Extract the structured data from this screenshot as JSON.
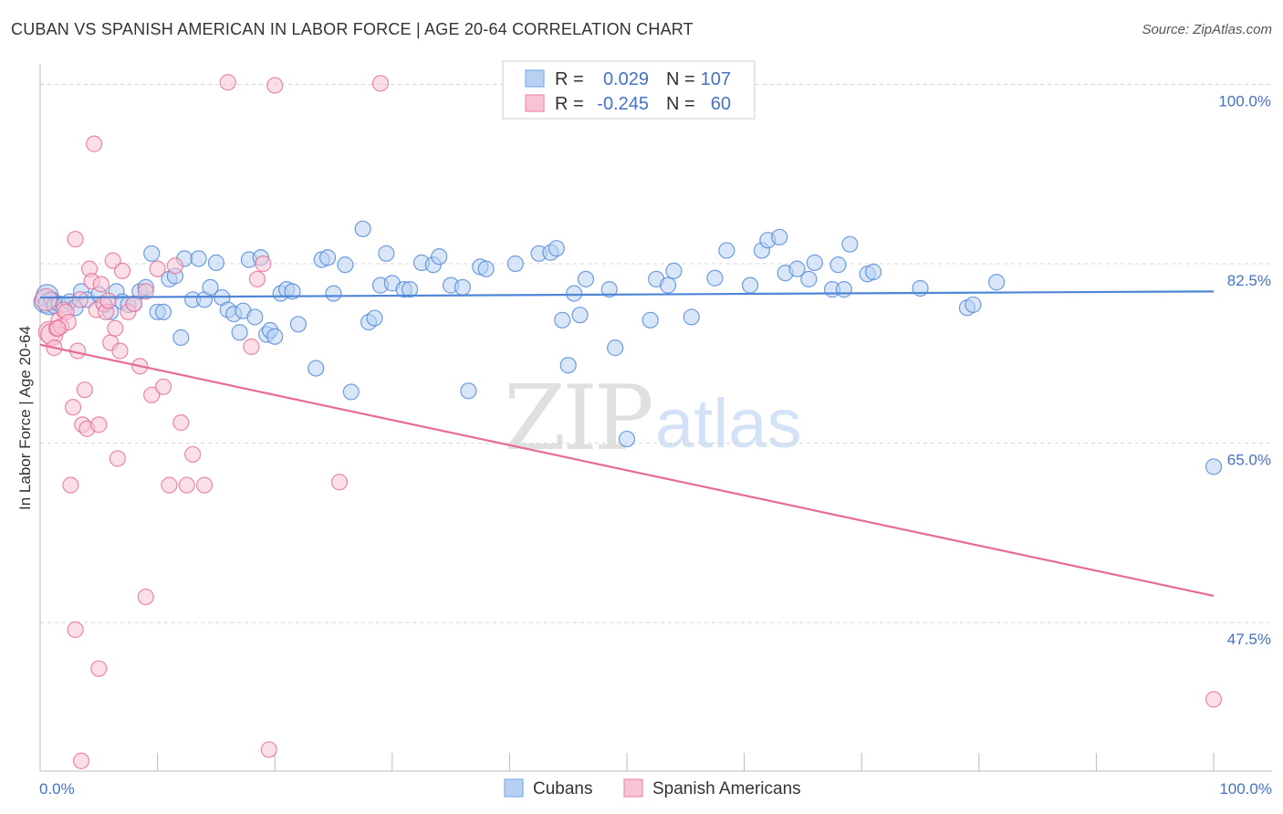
{
  "title": "CUBAN VS SPANISH AMERICAN IN LABOR FORCE | AGE 20-64 CORRELATION CHART",
  "source": "Source: ZipAtlas.com",
  "watermark": {
    "zip": "ZIP",
    "atlas": "atlas"
  },
  "legend": {
    "r_label": "R =",
    "n_label": "N =",
    "rows": [
      {
        "series": "Cubans",
        "r": "0.029",
        "n": "107",
        "color": "#7faee8",
        "fill": "#b8d1f3"
      },
      {
        "series": "Spanish Americans",
        "r": "-0.245",
        "n": "60",
        "color": "#f08fae",
        "fill": "#f8c4d4"
      }
    ]
  },
  "chart_data": {
    "type": "scatter",
    "title": "CUBAN VS SPANISH AMERICAN IN LABOR FORCE | AGE 20-64 CORRELATION CHART",
    "xlabel": "",
    "ylabel": "In Labor Force | Age 20-64",
    "xlim": [
      0,
      100
    ],
    "ylim": [
      33,
      102
    ],
    "x_tick_labels": [
      "0.0%",
      "100.0%"
    ],
    "y_ticks": [
      {
        "value": 100,
        "label": "100.0%"
      },
      {
        "value": 82.5,
        "label": "82.5%"
      },
      {
        "value": 65,
        "label": "65.0%"
      },
      {
        "value": 47.5,
        "label": "47.5%"
      }
    ],
    "grid": "horizontal-dashed",
    "series": [
      {
        "name": "Cubans",
        "color": "#4f86d6",
        "fill": "#b8d1f3",
        "trend": {
          "x": [
            0,
            100
          ],
          "y": [
            79.2,
            79.8
          ]
        },
        "points": [
          [
            0.4,
            78.8
          ],
          [
            0.6,
            79.4
          ],
          [
            0.8,
            78.6
          ],
          [
            1.0,
            79.0
          ],
          [
            1.2,
            78.4
          ],
          [
            1.6,
            78.6
          ],
          [
            2.0,
            78.5
          ],
          [
            2.5,
            78.8
          ],
          [
            3.0,
            78.2
          ],
          [
            3.5,
            79.8
          ],
          [
            4.0,
            79.0
          ],
          [
            5.0,
            79.5
          ],
          [
            5.5,
            78.5
          ],
          [
            6.0,
            77.8
          ],
          [
            6.5,
            79.8
          ],
          [
            7.0,
            78.8
          ],
          [
            7.5,
            78.5
          ],
          [
            8.0,
            78.6
          ],
          [
            8.5,
            79.8
          ],
          [
            9.0,
            80.2
          ],
          [
            9.5,
            83.5
          ],
          [
            10.0,
            77.8
          ],
          [
            10.5,
            77.8
          ],
          [
            11.0,
            81.0
          ],
          [
            11.5,
            81.3
          ],
          [
            12.0,
            75.3
          ],
          [
            12.3,
            83.0
          ],
          [
            13.0,
            79.0
          ],
          [
            13.5,
            83.0
          ],
          [
            14.0,
            79.0
          ],
          [
            14.5,
            80.2
          ],
          [
            15.0,
            82.6
          ],
          [
            15.5,
            79.2
          ],
          [
            16.0,
            78.0
          ],
          [
            16.5,
            77.6
          ],
          [
            17.0,
            75.8
          ],
          [
            17.3,
            77.9
          ],
          [
            17.8,
            82.9
          ],
          [
            18.3,
            77.3
          ],
          [
            18.8,
            83.1
          ],
          [
            19.3,
            75.6
          ],
          [
            19.6,
            76.0
          ],
          [
            20.0,
            75.4
          ],
          [
            20.5,
            79.6
          ],
          [
            21.0,
            80.0
          ],
          [
            21.5,
            79.8
          ],
          [
            22.0,
            76.6
          ],
          [
            23.5,
            72.3
          ],
          [
            24.0,
            82.9
          ],
          [
            24.5,
            83.1
          ],
          [
            25.0,
            79.6
          ],
          [
            26.0,
            82.4
          ],
          [
            26.5,
            70.0
          ],
          [
            27.5,
            85.9
          ],
          [
            28.0,
            76.8
          ],
          [
            28.5,
            77.2
          ],
          [
            29.0,
            80.4
          ],
          [
            29.5,
            83.5
          ],
          [
            30.0,
            80.6
          ],
          [
            31.0,
            80.0
          ],
          [
            31.5,
            80.0
          ],
          [
            32.5,
            82.6
          ],
          [
            33.5,
            82.4
          ],
          [
            34.0,
            83.2
          ],
          [
            35.0,
            80.4
          ],
          [
            36.0,
            80.2
          ],
          [
            36.5,
            70.1
          ],
          [
            37.5,
            82.2
          ],
          [
            38.0,
            82.0
          ],
          [
            40.5,
            82.5
          ],
          [
            42.5,
            83.5
          ],
          [
            43.5,
            83.6
          ],
          [
            44.0,
            84.0
          ],
          [
            44.5,
            77.0
          ],
          [
            45.0,
            72.6
          ],
          [
            45.5,
            79.6
          ],
          [
            46.0,
            77.5
          ],
          [
            46.5,
            81.0
          ],
          [
            48.5,
            80.0
          ],
          [
            49.0,
            74.3
          ],
          [
            50.0,
            65.4
          ],
          [
            52.0,
            77.0
          ],
          [
            52.5,
            81.0
          ],
          [
            53.5,
            80.4
          ],
          [
            54.0,
            81.8
          ],
          [
            55.5,
            77.3
          ],
          [
            57.5,
            81.1
          ],
          [
            58.5,
            83.8
          ],
          [
            60.5,
            80.4
          ],
          [
            61.5,
            83.8
          ],
          [
            62.0,
            84.8
          ],
          [
            63.0,
            85.1
          ],
          [
            63.5,
            81.6
          ],
          [
            64.5,
            82.0
          ],
          [
            65.5,
            81.0
          ],
          [
            66.0,
            82.6
          ],
          [
            67.5,
            80.0
          ],
          [
            68.0,
            82.4
          ],
          [
            68.5,
            80.0
          ],
          [
            69.0,
            84.4
          ],
          [
            70.5,
            81.5
          ],
          [
            71.0,
            81.7
          ],
          [
            75.0,
            80.1
          ],
          [
            79.0,
            78.2
          ],
          [
            79.5,
            78.5
          ],
          [
            81.5,
            80.7
          ],
          [
            100.0,
            62.7
          ]
        ]
      },
      {
        "name": "Spanish Americans",
        "color": "#e66b95",
        "fill": "#f8c4d4",
        "trend": {
          "x": [
            0,
            100
          ],
          "y": [
            74.6,
            50.1
          ]
        },
        "points": [
          [
            0.5,
            79.0
          ],
          [
            0.8,
            75.8
          ],
          [
            1.0,
            75.6
          ],
          [
            1.2,
            74.3
          ],
          [
            1.4,
            76.2
          ],
          [
            1.6,
            77.0
          ],
          [
            1.8,
            76.4
          ],
          [
            2.0,
            78.0
          ],
          [
            2.2,
            77.8
          ],
          [
            2.4,
            76.8
          ],
          [
            2.6,
            60.9
          ],
          [
            2.8,
            68.5
          ],
          [
            3.0,
            84.9
          ],
          [
            3.2,
            74.0
          ],
          [
            3.4,
            79.0
          ],
          [
            3.6,
            66.8
          ],
          [
            3.8,
            70.2
          ],
          [
            4.0,
            66.4
          ],
          [
            4.2,
            82.0
          ],
          [
            4.4,
            80.8
          ],
          [
            4.6,
            94.2
          ],
          [
            4.8,
            78.0
          ],
          [
            5.0,
            66.8
          ],
          [
            5.2,
            80.5
          ],
          [
            5.4,
            78.6
          ],
          [
            5.6,
            77.8
          ],
          [
            5.8,
            78.9
          ],
          [
            6.0,
            74.8
          ],
          [
            6.2,
            82.8
          ],
          [
            6.4,
            76.2
          ],
          [
            6.6,
            63.5
          ],
          [
            6.8,
            74.0
          ],
          [
            7.0,
            81.8
          ],
          [
            7.5,
            77.8
          ],
          [
            8.0,
            78.6
          ],
          [
            8.5,
            72.5
          ],
          [
            9.0,
            79.8
          ],
          [
            9.5,
            69.7
          ],
          [
            10.0,
            82.0
          ],
          [
            10.5,
            70.5
          ],
          [
            11.0,
            60.9
          ],
          [
            11.5,
            82.3
          ],
          [
            12.0,
            67.0
          ],
          [
            12.5,
            60.9
          ],
          [
            13.0,
            63.9
          ],
          [
            14.0,
            60.9
          ],
          [
            16.0,
            100.2
          ],
          [
            18.0,
            74.4
          ],
          [
            18.5,
            81.0
          ],
          [
            19.0,
            82.5
          ],
          [
            19.5,
            35.1
          ],
          [
            20.0,
            99.9
          ],
          [
            25.5,
            61.2
          ],
          [
            29.0,
            100.1
          ],
          [
            3.0,
            46.8
          ],
          [
            5.0,
            43.0
          ],
          [
            3.5,
            34.0
          ],
          [
            9.0,
            50.0
          ],
          [
            1.5,
            76.2
          ],
          [
            100.0,
            40.0
          ]
        ]
      }
    ]
  },
  "bottom_legend": [
    {
      "label": "Cubans",
      "color": "#7faee8",
      "fill": "#b8d1f3"
    },
    {
      "label": "Spanish Americans",
      "color": "#f08fae",
      "fill": "#f8c4d4"
    }
  ]
}
